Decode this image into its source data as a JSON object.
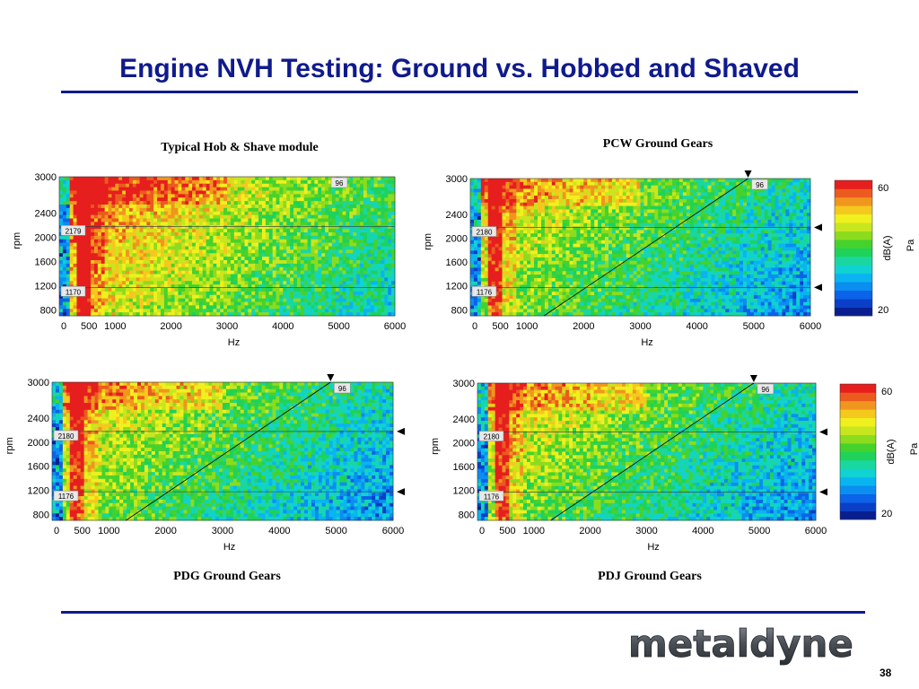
{
  "slide": {
    "title": "Engine NVH Testing: Ground vs. Hobbed and Shaved",
    "page_number": "38",
    "logo_text": "metaldyne"
  },
  "colors": {
    "title": "#0f1a8c",
    "rule": "#0f1a8c",
    "colorbar": [
      "#0a1f8f",
      "#0a3fc8",
      "#0a63e8",
      "#0a8ef0",
      "#0ab4f0",
      "#10d2d2",
      "#1ad7a0",
      "#1ed25a",
      "#46d22c",
      "#8cdc1e",
      "#c8e61e",
      "#f0f01e",
      "#f5c81e",
      "#f0961e",
      "#eb5a1e",
      "#e61e1e"
    ]
  },
  "chart_data": [
    {
      "type": "heatmap",
      "title": "Typical Hob & Shave module",
      "xlabel": "Hz",
      "ylabel": "rpm",
      "xlim": [
        0,
        6000
      ],
      "ylim": [
        700,
        3000
      ],
      "xticks": [
        "0",
        "500",
        "1000",
        "2000",
        "3000",
        "4000",
        "5000",
        "6000"
      ],
      "yticks": [
        "3000",
        "2400",
        "2000",
        "1600",
        "1200",
        "800"
      ],
      "order_line": {
        "label": "96",
        "shown": false
      },
      "markers": [
        {
          "rpm": 2179,
          "label": "2179"
        },
        {
          "rpm": 1170,
          "label": "1170"
        }
      ],
      "colorbar": null
    },
    {
      "type": "heatmap",
      "title": "PCW Ground Gears",
      "xlabel": "Hz",
      "ylabel": "rpm",
      "xlim": [
        0,
        6000
      ],
      "ylim": [
        700,
        3000
      ],
      "xticks": [
        "0",
        "500",
        "1000",
        "2000",
        "3000",
        "4000",
        "5000",
        "6000"
      ],
      "yticks": [
        "3000",
        "2400",
        "2000",
        "1600",
        "1200",
        "800"
      ],
      "order_line": {
        "label": "96",
        "shown": true
      },
      "markers": [
        {
          "rpm": 2180,
          "label": "2180"
        },
        {
          "rpm": 1176,
          "label": "1176"
        }
      ],
      "colorbar": {
        "label": "dB(A)",
        "unit": "Pa",
        "min_label": "20",
        "max_label": "60",
        "min": 20,
        "max": 60
      }
    },
    {
      "type": "heatmap",
      "title": "PDG Ground Gears",
      "xlabel": "Hz",
      "ylabel": "rpm",
      "xlim": [
        0,
        6000
      ],
      "ylim": [
        700,
        3000
      ],
      "xticks": [
        "0",
        "500",
        "1000",
        "2000",
        "3000",
        "4000",
        "5000",
        "6000"
      ],
      "yticks": [
        "3000",
        "2400",
        "2000",
        "1600",
        "1200",
        "800"
      ],
      "order_line": {
        "label": "96",
        "shown": true
      },
      "markers": [
        {
          "rpm": 2180,
          "label": "2180"
        },
        {
          "rpm": 1176,
          "label": "1176"
        }
      ],
      "colorbar": null
    },
    {
      "type": "heatmap",
      "title": "PDJ Ground Gears",
      "xlabel": "Hz",
      "ylabel": "rpm",
      "xlim": [
        0,
        6000
      ],
      "ylim": [
        700,
        3000
      ],
      "xticks": [
        "0",
        "500",
        "1000",
        "2000",
        "3000",
        "4000",
        "5000",
        "6000"
      ],
      "yticks": [
        "3000",
        "2400",
        "2000",
        "1600",
        "1200",
        "800"
      ],
      "order_line": {
        "label": "96",
        "shown": true
      },
      "markers": [
        {
          "rpm": 2180,
          "label": "2180"
        },
        {
          "rpm": 1176,
          "label": "1176"
        }
      ],
      "colorbar": {
        "label": "dB(A)",
        "unit": "Pa",
        "min_label": "20",
        "max_label": "60",
        "min": 20,
        "max": 60
      }
    }
  ]
}
